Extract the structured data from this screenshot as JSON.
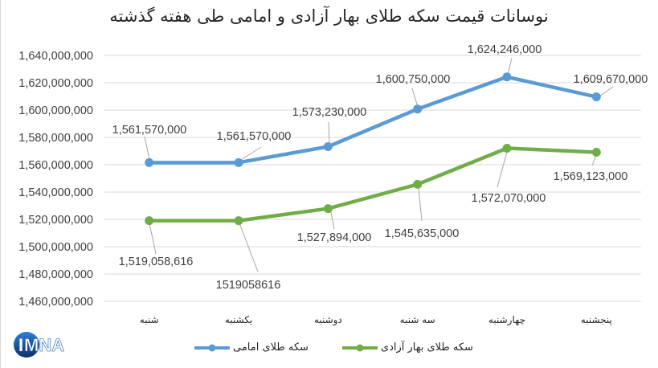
{
  "title": "نوسانات قیمت سکه طلای بهار آزادی و امامی طی هفته گذشته",
  "logo": {
    "text": "IMNA",
    "color_primary": "#1a5aa8",
    "color_dark": "#0d2f6b"
  },
  "colors": {
    "imami": "#5b9bd5",
    "bahar_azadi": "#70ad47",
    "gridline": "#d9d9d9",
    "leader_line": "#a6a6a6",
    "text": "#404040"
  },
  "y_axis": {
    "ticks": [
      "1,640,000,000",
      "1,620,000,000",
      "1,600,000,000",
      "1,580,000,000",
      "1,560,000,000",
      "1,540,000,000",
      "1,520,000,000",
      "1,500,000,000",
      "1,480,000,000",
      "1,460,000,000"
    ]
  },
  "x_axis": {
    "categories": [
      "شنبه",
      "یکشنبه",
      "دوشنبه",
      "سه شنبه",
      "چهارشنبه",
      "پنجشنبه"
    ]
  },
  "legend": [
    {
      "label": "سکه طلای امامی",
      "color": "#5b9bd5"
    },
    {
      "label": "سکه طلای بهار آزادی",
      "color": "#70ad47"
    }
  ],
  "series_labels": {
    "imami": [
      "1,561,570,000",
      "1,561,570,000",
      "1,573,230,000",
      "1,600,750,000",
      "1,624,246,000",
      "1,609,670,000"
    ],
    "bahar_azadi": [
      "1,519,058,616",
      "1519058616",
      "1,527,894,000",
      "1,545,635,000",
      "1,572,070,000",
      "1,569,123,000"
    ]
  },
  "chart_data": {
    "type": "line",
    "title": "نوسانات قیمت سکه طلای بهار آزادی و امامی طی هفته گذشته",
    "xlabel": "",
    "ylabel": "",
    "categories": [
      "شنبه",
      "یکشنبه",
      "دوشنبه",
      "سه شنبه",
      "چهارشنبه",
      "پنجشنبه"
    ],
    "series": [
      {
        "name": "سکه طلای امامی",
        "color": "#5b9bd5",
        "values": [
          1561570000,
          1561570000,
          1573230000,
          1600750000,
          1624246000,
          1609670000
        ]
      },
      {
        "name": "سکه طلای بهار آزادی",
        "color": "#70ad47",
        "values": [
          1519058616,
          1519058616,
          1527894000,
          1545635000,
          1572070000,
          1569123000
        ]
      }
    ],
    "ylim": [
      1460000000,
      1640000000
    ],
    "ytick_step": 20000000,
    "grid": true,
    "legend_position": "bottom",
    "data_labels": true
  }
}
